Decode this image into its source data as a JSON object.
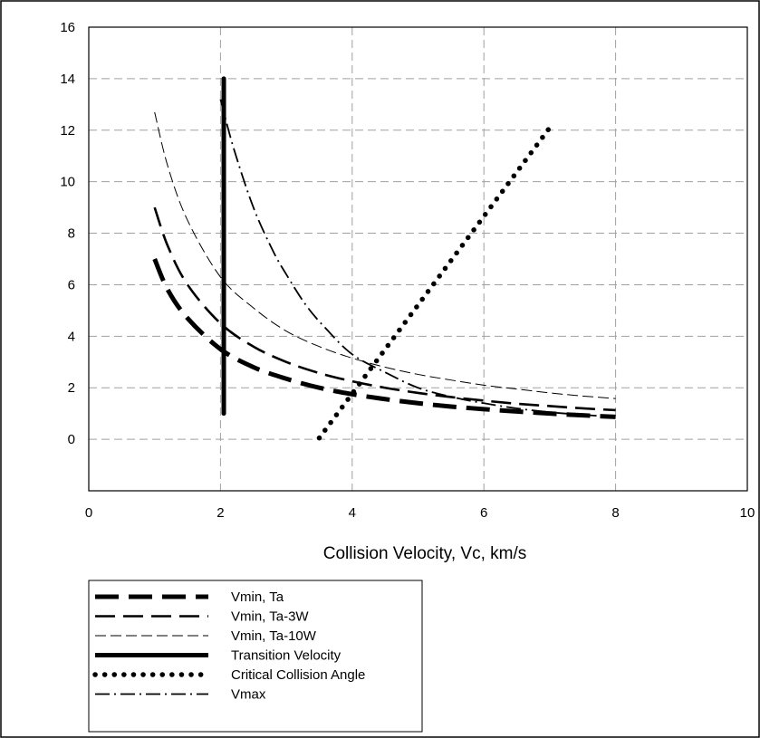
{
  "chart_data": {
    "type": "line",
    "xlabel": "Collision Velocity, Vc, km/s",
    "ylabel": "",
    "xlim": [
      0,
      10
    ],
    "ylim": [
      -2,
      16
    ],
    "xticks": [
      0,
      2,
      4,
      6,
      8,
      10
    ],
    "yticks": [
      0,
      2,
      4,
      6,
      8,
      10,
      12,
      14,
      16
    ],
    "grid": "dashed gray lines at every tick",
    "legend_position": "bottom-left below plot",
    "series": [
      {
        "name": "Vmin, Ta",
        "style": "long-dash-thick",
        "color": "#000000",
        "x": [
          1.0,
          1.2,
          1.5,
          2.0,
          2.5,
          3.0,
          3.5,
          4.0,
          4.5,
          5.0,
          5.5,
          6.0,
          6.5,
          7.0,
          7.5,
          8.0
        ],
        "y": [
          7.0,
          5.8,
          4.7,
          3.5,
          2.8,
          2.35,
          2.0,
          1.75,
          1.56,
          1.4,
          1.27,
          1.17,
          1.08,
          1.0,
          0.93,
          0.87
        ]
      },
      {
        "name": "Vmin, Ta-3W",
        "style": "long-dash-medium",
        "color": "#000000",
        "x": [
          1.0,
          1.2,
          1.5,
          2.0,
          2.5,
          3.0,
          3.5,
          4.0,
          4.5,
          5.0,
          5.5,
          6.0,
          6.5,
          7.0,
          7.5,
          8.0
        ],
        "y": [
          9.0,
          7.5,
          6.0,
          4.5,
          3.6,
          3.0,
          2.57,
          2.25,
          2.0,
          1.8,
          1.64,
          1.5,
          1.38,
          1.29,
          1.2,
          1.13
        ]
      },
      {
        "name": "Vmin, Ta-10W",
        "style": "dash-thin",
        "color": "#000000",
        "x": [
          1.0,
          1.2,
          1.5,
          2.0,
          2.5,
          3.0,
          3.5,
          4.0,
          4.5,
          5.0,
          5.5,
          6.0,
          6.5,
          7.0,
          7.5,
          8.0
        ],
        "y": [
          12.7,
          10.6,
          8.5,
          6.3,
          5.1,
          4.2,
          3.6,
          3.15,
          2.8,
          2.52,
          2.3,
          2.1,
          1.95,
          1.8,
          1.68,
          1.58
        ]
      },
      {
        "name": "Transition Velocity",
        "style": "solid-thick",
        "color": "#000000",
        "x": [
          2.05,
          2.05
        ],
        "y": [
          1.0,
          14.0
        ]
      },
      {
        "name": "Critical Collision Angle",
        "style": "dotted",
        "color": "#000000",
        "x": [
          3.5,
          7.0
        ],
        "y": [
          0.05,
          12.1
        ]
      },
      {
        "name": "Vmax",
        "style": "dash-dot",
        "color": "#000000",
        "x": [
          2.0,
          2.2,
          2.5,
          2.8,
          3.0,
          3.3,
          3.6,
          4.0,
          4.5,
          5.0,
          5.5,
          6.0,
          6.5,
          7.0,
          7.5,
          8.0
        ],
        "y": [
          13.2,
          11.3,
          9.0,
          7.3,
          6.4,
          5.2,
          4.3,
          3.3,
          2.6,
          2.0,
          1.65,
          1.4,
          1.2,
          1.05,
          0.95,
          0.87
        ]
      }
    ]
  }
}
